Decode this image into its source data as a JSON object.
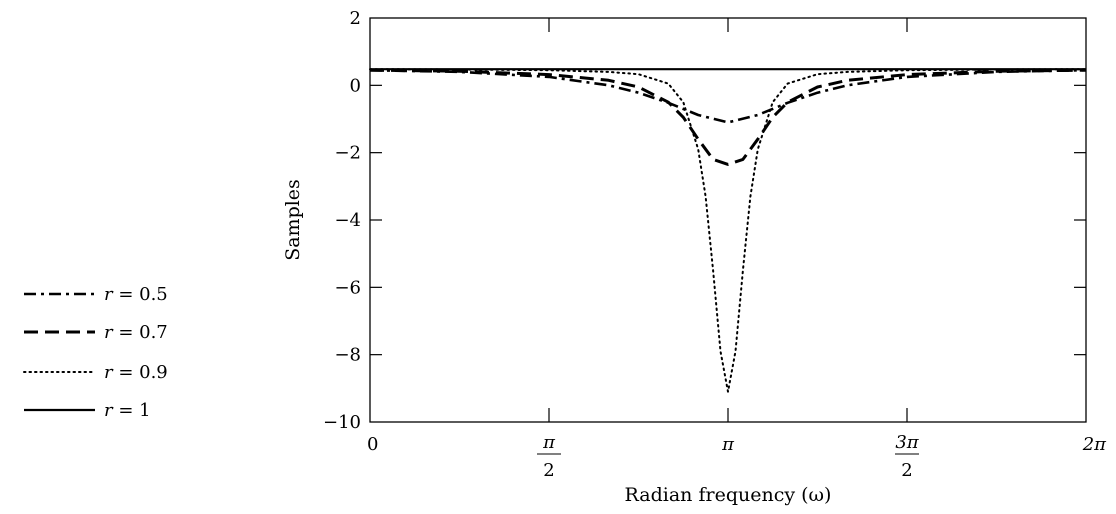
{
  "chart_data": {
    "type": "line",
    "title": "",
    "xlabel": "Radian frequency (ω)",
    "ylabel": "Samples",
    "xlim": [
      0,
      6.283185
    ],
    "ylim": [
      -10,
      2
    ],
    "y_ticks": [
      {
        "value": 2,
        "label": "2"
      },
      {
        "value": 0,
        "label": "0"
      },
      {
        "value": -2,
        "label": "−2"
      },
      {
        "value": -4,
        "label": "−4"
      },
      {
        "value": -6,
        "label": "−6"
      },
      {
        "value": -8,
        "label": "−8"
      },
      {
        "value": -10,
        "label": "−10"
      }
    ],
    "x_ticks": [
      {
        "value": 0,
        "label": "0",
        "num": "",
        "den": ""
      },
      {
        "value": 1.570796,
        "label": "",
        "num": "π",
        "den": "2"
      },
      {
        "value": 3.141593,
        "label": "π",
        "num": "",
        "den": ""
      },
      {
        "value": 4.712389,
        "label": "",
        "num": "3π",
        "den": "2"
      },
      {
        "value": 6.283185,
        "label": "2π",
        "num": "",
        "den": ""
      }
    ],
    "grid": false,
    "legend_position": "left",
    "series": [
      {
        "name": "r = 0.5",
        "style": "dashdot",
        "x": [
          0,
          0.785,
          1.571,
          2.094,
          2.356,
          2.618,
          2.88,
          3.142,
          3.403,
          3.665,
          3.927,
          4.189,
          4.712,
          5.498,
          6.283
        ],
        "y": [
          0.45,
          0.4,
          0.25,
          0.0,
          -0.22,
          -0.52,
          -0.88,
          -1.1,
          -0.88,
          -0.52,
          -0.22,
          0.0,
          0.25,
          0.4,
          0.45
        ]
      },
      {
        "name": "r = 0.7",
        "style": "dashed",
        "x": [
          0,
          0.785,
          1.571,
          2.094,
          2.356,
          2.618,
          2.749,
          2.88,
          3.011,
          3.142,
          3.272,
          3.403,
          3.534,
          3.665,
          3.927,
          4.189,
          4.712,
          5.498,
          6.283
        ],
        "y": [
          0.45,
          0.42,
          0.32,
          0.15,
          -0.05,
          -0.5,
          -0.95,
          -1.6,
          -2.2,
          -2.35,
          -2.2,
          -1.6,
          -0.95,
          -0.5,
          -0.05,
          0.15,
          0.32,
          0.42,
          0.45
        ]
      },
      {
        "name": "r = 0.9",
        "style": "dotted",
        "x": [
          0,
          0.785,
          1.571,
          2.094,
          2.356,
          2.618,
          2.749,
          2.88,
          2.945,
          3.011,
          3.076,
          3.142,
          3.207,
          3.272,
          3.338,
          3.403,
          3.534,
          3.665,
          3.927,
          4.189,
          4.712,
          5.498,
          6.283
        ],
        "y": [
          0.48,
          0.47,
          0.45,
          0.4,
          0.33,
          0.05,
          -0.5,
          -1.9,
          -3.3,
          -5.5,
          -7.9,
          -9.1,
          -7.9,
          -5.5,
          -3.3,
          -1.9,
          -0.5,
          0.05,
          0.33,
          0.4,
          0.45,
          0.47,
          0.48
        ]
      },
      {
        "name": "r = 1",
        "style": "solid",
        "x": [
          0,
          6.283
        ],
        "y": [
          0.48,
          0.48
        ]
      }
    ]
  }
}
